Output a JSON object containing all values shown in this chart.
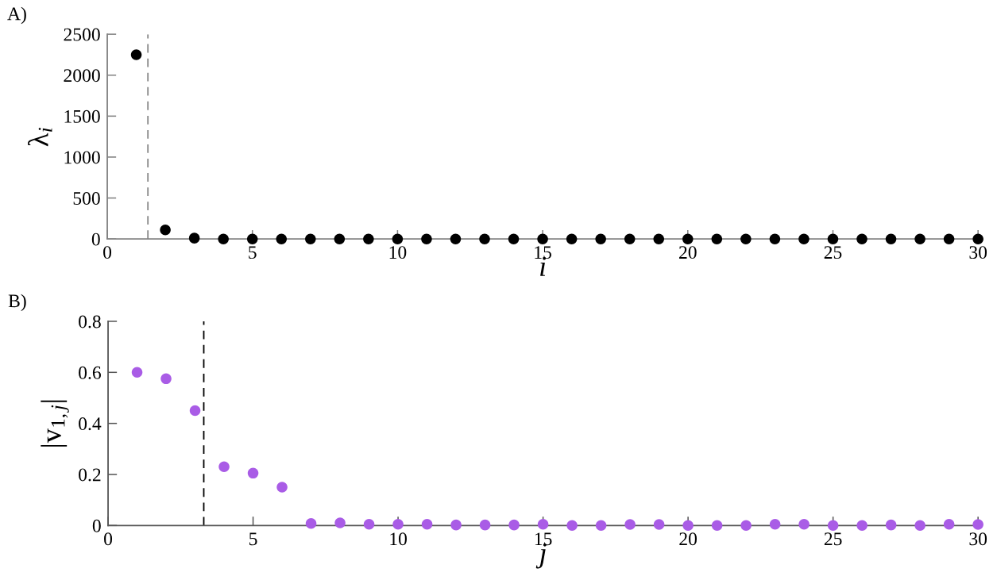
{
  "chart_data": [
    {
      "type": "scatter",
      "title": "A)",
      "xlabel": "i",
      "ylabel": "λ$_{i}$",
      "x": [
        1,
        2,
        3,
        4,
        5,
        6,
        7,
        8,
        9,
        10,
        11,
        12,
        13,
        14,
        15,
        16,
        17,
        18,
        19,
        20,
        21,
        22,
        23,
        24,
        25,
        26,
        27,
        28,
        29,
        30
      ],
      "values": [
        2250,
        110,
        10,
        0,
        0,
        0,
        0,
        0,
        0,
        0,
        0,
        0,
        0,
        0,
        0,
        0,
        0,
        0,
        0,
        0,
        0,
        0,
        0,
        0,
        0,
        0,
        0,
        0,
        0,
        0
      ],
      "color": "#000000",
      "marker": "circle",
      "xlim": [
        0,
        30
      ],
      "ylim": [
        0,
        2500
      ],
      "xticks": [
        0,
        5,
        10,
        15,
        20,
        25,
        30
      ],
      "yticks": [
        0,
        500,
        1000,
        1500,
        2000,
        2500
      ],
      "ref_lines": [
        {
          "axis": "x",
          "value": 1.4,
          "color": "#888888",
          "line_style": "dashed"
        }
      ]
    },
    {
      "type": "scatter",
      "title": "B)",
      "xlabel": "j",
      "ylabel": "|v$_{1,j}$|",
      "x": [
        1,
        2,
        3,
        4,
        5,
        6,
        7,
        8,
        9,
        10,
        11,
        12,
        13,
        14,
        15,
        16,
        17,
        18,
        19,
        20,
        21,
        22,
        23,
        24,
        25,
        26,
        27,
        28,
        29,
        30
      ],
      "values": [
        0.6,
        0.575,
        0.45,
        0.23,
        0.205,
        0.15,
        0.008,
        0.01,
        0.005,
        0.005,
        0.005,
        0.002,
        0.002,
        0.002,
        0.005,
        0,
        0,
        0.004,
        0.004,
        0,
        0,
        0,
        0.005,
        0.005,
        0,
        0,
        0.002,
        0,
        0.005,
        0.004
      ],
      "color": "#a95ce6",
      "marker": "circle",
      "xlim": [
        0,
        30
      ],
      "ylim": [
        0,
        0.8
      ],
      "xticks": [
        0,
        5,
        10,
        15,
        20,
        25,
        30
      ],
      "yticks": [
        0,
        0.2,
        0.4,
        0.6,
        0.8
      ],
      "ref_lines": [
        {
          "axis": "x",
          "value": 3.3,
          "color": "#000000",
          "line_style": "dashed"
        }
      ]
    }
  ]
}
